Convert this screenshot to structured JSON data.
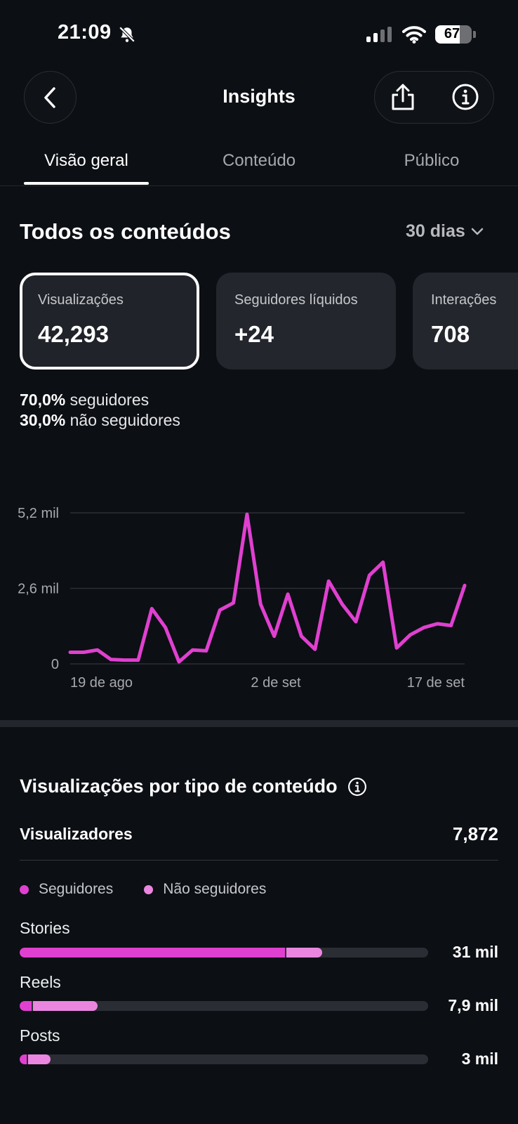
{
  "status_bar": {
    "time": "21:09",
    "battery": "67",
    "battery_level": 0.67,
    "icons": [
      "bell-slash-icon",
      "cellular-signal-icon",
      "wifi-icon",
      "battery-icon"
    ]
  },
  "header": {
    "title": "Insights",
    "back_icon": "chevron-left-icon",
    "share_icon": "share-icon",
    "info_icon": "info-circle-icon"
  },
  "tabs": [
    {
      "label": "Visão geral",
      "active": true
    },
    {
      "label": "Conteúdo",
      "active": false
    },
    {
      "label": "Público",
      "active": false
    }
  ],
  "overview": {
    "title": "Todos os conteúdos",
    "range": "30 dias",
    "cards": [
      {
        "label": "Visualizações",
        "value": "42,293",
        "selected": true
      },
      {
        "label": "Seguidores líquidos",
        "value": "+24",
        "selected": false
      },
      {
        "label": "Interações",
        "value": "708",
        "selected": false
      }
    ],
    "followers_pct": "70,0%",
    "followers_text": "seguidores",
    "nonfollowers_pct": "30,0%",
    "nonfollowers_text": "não seguidores"
  },
  "chart_data": {
    "type": "line",
    "y_tick_labels": [
      "5,2 mil",
      "2,6 mil",
      "0"
    ],
    "y_ticks": [
      5200,
      2600,
      0
    ],
    "ylim": [
      0,
      5200
    ],
    "x_tick_labels": [
      "19 de ago",
      "2 de set",
      "17 de set"
    ],
    "grid": true,
    "series": [
      {
        "color": "#e040d0",
        "values": [
          400,
          400,
          480,
          150,
          130,
          130,
          1900,
          1250,
          70,
          480,
          450,
          1850,
          2100,
          5150,
          2050,
          950,
          2400,
          950,
          500,
          2850,
          2050,
          1450,
          3050,
          3500,
          550,
          1000,
          1250,
          1380,
          1320,
          2700
        ]
      }
    ]
  },
  "breakdown": {
    "title": "Visualizações por tipo de conteúdo",
    "info_icon": "info-circle-icon",
    "viewers_label": "Visualizadores",
    "viewers_value": "7,872",
    "legend": [
      {
        "label": "Seguidores",
        "color": "#e040d0"
      },
      {
        "label": "Não seguidores",
        "color": "#ea86e0"
      }
    ],
    "rows": [
      {
        "label": "Stories",
        "value": "31 mil",
        "followers_fraction": 0.65,
        "nonfollowers_fraction": 0.09
      },
      {
        "label": "Reels",
        "value": "7,9 mil",
        "followers_fraction": 0.03,
        "nonfollowers_fraction": 0.16
      },
      {
        "label": "Posts",
        "value": "3 mil",
        "followers_fraction": 0.018,
        "nonfollowers_fraction": 0.057
      }
    ]
  },
  "colors": {
    "background": "#0c0f14",
    "card": "#23262d",
    "accent_followers": "#e040d0",
    "accent_nonfollowers": "#ea86e0",
    "track": "#2a2d33"
  }
}
